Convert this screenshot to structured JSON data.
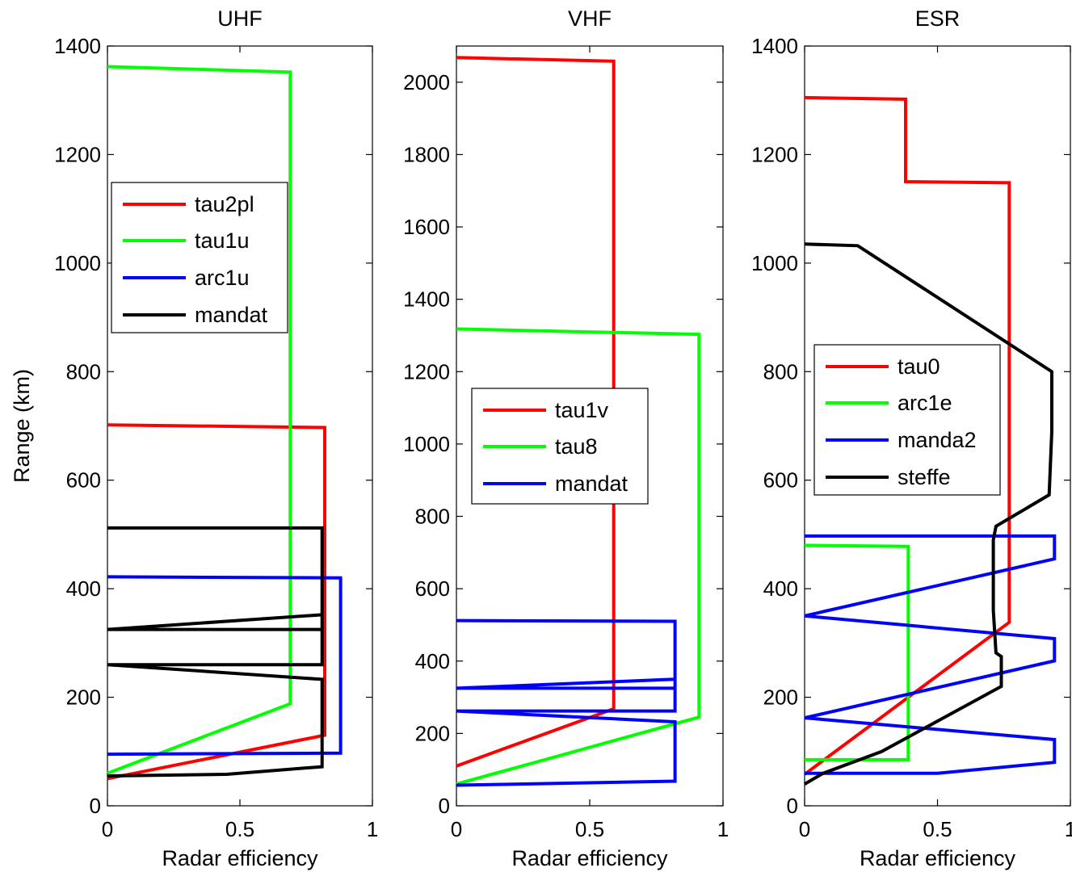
{
  "colors": {
    "red": "#ff0000",
    "green": "#00ff00",
    "blue": "#0000ff",
    "black": "#000000"
  },
  "figure": {
    "ylabel": "Range (km)"
  },
  "chart_data": [
    {
      "type": "line",
      "title": "UHF",
      "xlabel": "Radar efficiency",
      "ylabel": "Range (km)",
      "xlim": [
        0,
        1
      ],
      "ylim": [
        0,
        1400
      ],
      "xticks": [
        "0",
        "0.5",
        "1"
      ],
      "yticks": [
        "0",
        "200",
        "400",
        "600",
        "800",
        "1000",
        "1200",
        "1400"
      ],
      "y_tick_values": [
        0,
        200,
        400,
        600,
        800,
        1000,
        1200,
        1400
      ],
      "x_tick_values": [
        0,
        0.5,
        1
      ],
      "grid": false,
      "legend_position": "upper-left",
      "series": [
        {
          "name": "tau2pl",
          "color": "#ff0000",
          "x": [
            0,
            0.82,
            0.82,
            0.82,
            0
          ],
          "y": [
            50,
            130,
            130,
            697,
            702
          ]
        },
        {
          "name": "tau1u",
          "color": "#00ff00",
          "x": [
            0,
            0.69,
            0.69,
            0
          ],
          "y": [
            60,
            188,
            1352,
            1362
          ]
        },
        {
          "name": "arc1u",
          "color": "#0000ff",
          "x": [
            0,
            0.88,
            0.88,
            0
          ],
          "y": [
            95,
            97,
            420,
            422
          ]
        },
        {
          "name": "mandat",
          "color": "#000000",
          "x": [
            0,
            0.45,
            0.81,
            0.81,
            0,
            0.81,
            0.81,
            0,
            0.81,
            0.81,
            0
          ],
          "y": [
            55,
            58,
            72,
            233,
            260,
            260,
            352,
            325,
            325,
            512,
            512
          ]
        }
      ]
    },
    {
      "type": "line",
      "title": "VHF",
      "xlabel": "Radar efficiency",
      "ylabel": "",
      "xlim": [
        0,
        1
      ],
      "ylim": [
        0,
        2100
      ],
      "xticks": [
        "0",
        "0.5",
        "1"
      ],
      "yticks": [
        "0",
        "200",
        "400",
        "600",
        "800",
        "1000",
        "1200",
        "1400",
        "1600",
        "1800",
        "2000"
      ],
      "y_tick_values": [
        0,
        200,
        400,
        600,
        800,
        1000,
        1200,
        1400,
        1600,
        1800,
        2000
      ],
      "x_tick_values": [
        0,
        0.5,
        1
      ],
      "grid": false,
      "legend_position": "center-left",
      "series": [
        {
          "name": "tau1v",
          "color": "#ff0000",
          "x": [
            0,
            0.59,
            0.59,
            0
          ],
          "y": [
            110,
            268,
            2058,
            2068
          ]
        },
        {
          "name": "tau8",
          "color": "#00ff00",
          "x": [
            0,
            0.91,
            0.91,
            0
          ],
          "y": [
            60,
            245,
            1303,
            1318
          ]
        },
        {
          "name": "mandat",
          "color": "#0000ff",
          "x": [
            0,
            0.82,
            0.82,
            0,
            0.82,
            0.82,
            0,
            0.82,
            0.82,
            0
          ],
          "y": [
            57,
            68,
            232,
            262,
            262,
            350,
            325,
            325,
            510,
            512
          ]
        }
      ]
    },
    {
      "type": "line",
      "title": "ESR",
      "xlabel": "Radar efficiency",
      "ylabel": "",
      "xlim": [
        0,
        1
      ],
      "ylim": [
        0,
        1400
      ],
      "xticks": [
        "0",
        "0.5",
        "1"
      ],
      "yticks": [
        "0",
        "200",
        "400",
        "600",
        "800",
        "1000",
        "1200",
        "1400"
      ],
      "y_tick_values": [
        0,
        200,
        400,
        600,
        800,
        1000,
        1200,
        1400
      ],
      "x_tick_values": [
        0,
        0.5,
        1
      ],
      "grid": false,
      "legend_position": "center-left",
      "series": [
        {
          "name": "tau0",
          "color": "#ff0000",
          "x": [
            0,
            0.77,
            0.77,
            0.38,
            0.38,
            0
          ],
          "y": [
            58,
            338,
            1148,
            1150,
            1302,
            1305
          ]
        },
        {
          "name": "arc1e",
          "color": "#00ff00",
          "x": [
            0,
            0.39,
            0.39,
            0
          ],
          "y": [
            85,
            85,
            478,
            480
          ]
        },
        {
          "name": "manda2",
          "color": "#0000ff",
          "x": [
            0,
            0.5,
            0.94,
            0.94,
            0,
            0.94,
            0.94,
            0,
            0.94,
            0.94,
            0
          ],
          "y": [
            60,
            60,
            80,
            122,
            162,
            267,
            308,
            350,
            455,
            497,
            497
          ]
        },
        {
          "name": "steffe",
          "color": "#000000",
          "x": [
            0,
            0.07,
            0.29,
            0.74,
            0.74,
            0.72,
            0.71,
            0.71,
            0.72,
            0.92,
            0.93,
            0.93,
            0.2,
            0
          ],
          "y": [
            40,
            60,
            100,
            220,
            275,
            282,
            360,
            490,
            515,
            573,
            690,
            800,
            1032,
            1035
          ]
        }
      ]
    }
  ]
}
